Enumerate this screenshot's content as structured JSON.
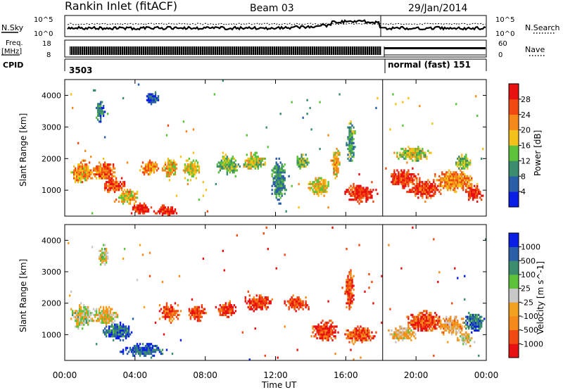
{
  "header": {
    "station": "Rankin Inlet (fitACF)",
    "beam": "Beam 03",
    "date": "29/Jan/2014"
  },
  "labels": {
    "nsky": "N.Sky",
    "nsearch": "N.Search",
    "freq_line1": "Freq.",
    "freq_line2": "[MHz]",
    "nave": "Nave",
    "cpid": "CPID",
    "cpid_1": "3503",
    "cpid_2": "normal (fast) 151",
    "noise_tick_hi": "10^5",
    "noise_tick_lo": "10^0",
    "freq_tick_hi": "18",
    "freq_tick_lo": "8",
    "nave_tick_hi": "60",
    "nave_tick_lo": "0"
  },
  "colors": {
    "power": [
      "#0a1ee6",
      "#2a5fa8",
      "#3c8c6e",
      "#5cc23a",
      "#f2c21a",
      "#f58a1a",
      "#f04a12",
      "#e81010"
    ],
    "velocity": [
      "#e81010",
      "#f04a12",
      "#f58a1a",
      "#f2a020",
      "#c8c8c8",
      "#5cc23a",
      "#3c8c6e",
      "#2a5fa8",
      "#0a1ee6"
    ]
  },
  "chart_data": [
    {
      "type": "heatmap",
      "name": "power",
      "ylabel": "Slant Range [km]",
      "xlabel": "Time UT",
      "x_ticks": [
        "00:00",
        "04:00",
        "08:00",
        "12:00",
        "16:00",
        "20:00",
        "00:00"
      ],
      "xlim_hours": [
        0,
        24
      ],
      "y_ticks": [
        1000,
        2000,
        3000,
        4000
      ],
      "ylim": [
        180,
        4500
      ],
      "colorbar_label": "Power [dB]",
      "colorbar_ticks": [
        "4",
        "8",
        "12",
        "16",
        "20",
        "24",
        "28"
      ],
      "mode_change_hour": 18.1,
      "blobs": [
        {
          "t": 1.0,
          "r": 1550,
          "dt": 0.8,
          "dr": 450,
          "lvl": 0.65
        },
        {
          "t": 2.2,
          "r": 1600,
          "dt": 0.9,
          "dr": 350,
          "lvl": 0.75
        },
        {
          "t": 2.8,
          "r": 1150,
          "dt": 0.8,
          "dr": 300,
          "lvl": 0.8
        },
        {
          "t": 3.6,
          "r": 800,
          "dt": 0.8,
          "dr": 300,
          "lvl": 0.6
        },
        {
          "t": 4.3,
          "r": 400,
          "dt": 0.7,
          "dr": 220,
          "lvl": 0.9
        },
        {
          "t": 4.8,
          "r": 1700,
          "dt": 0.6,
          "dr": 300,
          "lvl": 0.7
        },
        {
          "t": 5.8,
          "r": 350,
          "dt": 0.9,
          "dr": 200,
          "lvl": 0.9
        },
        {
          "t": 6.0,
          "r": 1700,
          "dt": 0.5,
          "dr": 400,
          "lvl": 0.6
        },
        {
          "t": 7.2,
          "r": 1650,
          "dt": 0.6,
          "dr": 400,
          "lvl": 0.55
        },
        {
          "t": 9.3,
          "r": 1800,
          "dt": 0.8,
          "dr": 350,
          "lvl": 0.45
        },
        {
          "t": 10.8,
          "r": 1900,
          "dt": 0.8,
          "dr": 350,
          "lvl": 0.5
        },
        {
          "t": 12.2,
          "r": 1300,
          "dt": 0.5,
          "dr": 800,
          "lvl": 0.3
        },
        {
          "t": 13.5,
          "r": 1900,
          "dt": 0.5,
          "dr": 300,
          "lvl": 0.45
        },
        {
          "t": 14.5,
          "r": 1100,
          "dt": 0.7,
          "dr": 400,
          "lvl": 0.55
        },
        {
          "t": 15.4,
          "r": 1900,
          "dt": 0.3,
          "dr": 600,
          "lvl": 0.6
        },
        {
          "t": 16.8,
          "r": 900,
          "dt": 1.1,
          "dr": 350,
          "lvl": 0.9
        },
        {
          "t": 16.3,
          "r": 2500,
          "dt": 0.3,
          "dr": 800,
          "lvl": 0.35
        },
        {
          "t": 19.3,
          "r": 1350,
          "dt": 1.1,
          "dr": 350,
          "lvl": 0.85
        },
        {
          "t": 20.5,
          "r": 1050,
          "dt": 1.3,
          "dr": 350,
          "lvl": 0.85
        },
        {
          "t": 22.2,
          "r": 1300,
          "dt": 1.4,
          "dr": 400,
          "lvl": 0.7
        },
        {
          "t": 23.3,
          "r": 900,
          "dt": 0.6,
          "dr": 300,
          "lvl": 0.9
        },
        {
          "t": 19.8,
          "r": 2150,
          "dt": 1.2,
          "dr": 300,
          "lvl": 0.5
        },
        {
          "t": 22.7,
          "r": 1900,
          "dt": 0.6,
          "dr": 300,
          "lvl": 0.45
        },
        {
          "t": 5.0,
          "r": 3900,
          "dt": 0.4,
          "dr": 300,
          "lvl": 0.2
        },
        {
          "t": 2.0,
          "r": 3500,
          "dt": 0.3,
          "dr": 400,
          "lvl": 0.25
        }
      ]
    },
    {
      "type": "heatmap",
      "name": "velocity",
      "ylabel": "Slant Range [km]",
      "xlabel": "Time UT",
      "x_ticks": [
        "00:00",
        "04:00",
        "08:00",
        "12:00",
        "16:00",
        "20:00",
        "00:00"
      ],
      "xlim_hours": [
        0,
        24
      ],
      "y_ticks": [
        1000,
        2000,
        3000,
        4000
      ],
      "ylim": [
        180,
        4500
      ],
      "colorbar_label": "Velocity [m s^-1]",
      "colorbar_ticks": [
        "1000",
        "500",
        "100",
        "25",
        "-25",
        "-100",
        "-500",
        "-1000"
      ],
      "mode_change_hour": 18.1,
      "blobs": [
        {
          "t": 1.0,
          "r": 1600,
          "dt": 0.8,
          "dr": 450,
          "lvl": 0.5
        },
        {
          "t": 2.3,
          "r": 1600,
          "dt": 0.9,
          "dr": 350,
          "lvl": 0.45
        },
        {
          "t": 3.0,
          "r": 1100,
          "dt": 1.0,
          "dr": 350,
          "lvl": 0.8
        },
        {
          "t": 4.5,
          "r": 500,
          "dt": 1.5,
          "dr": 250,
          "lvl": 0.85
        },
        {
          "t": 6.0,
          "r": 1700,
          "dt": 0.7,
          "dr": 350,
          "lvl": 0.2
        },
        {
          "t": 7.5,
          "r": 1700,
          "dt": 0.6,
          "dr": 350,
          "lvl": 0.15
        },
        {
          "t": 9.2,
          "r": 1800,
          "dt": 0.7,
          "dr": 300,
          "lvl": 0.1
        },
        {
          "t": 11.0,
          "r": 2000,
          "dt": 1.0,
          "dr": 300,
          "lvl": 0.12
        },
        {
          "t": 13.2,
          "r": 2000,
          "dt": 0.8,
          "dr": 300,
          "lvl": 0.12
        },
        {
          "t": 14.8,
          "r": 1100,
          "dt": 0.9,
          "dr": 400,
          "lvl": 0.15
        },
        {
          "t": 16.8,
          "r": 1000,
          "dt": 1.0,
          "dr": 350,
          "lvl": 0.2
        },
        {
          "t": 19.2,
          "r": 1000,
          "dt": 1.0,
          "dr": 300,
          "lvl": 0.4
        },
        {
          "t": 20.5,
          "r": 1400,
          "dt": 1.2,
          "dr": 400,
          "lvl": 0.15
        },
        {
          "t": 22.0,
          "r": 1300,
          "dt": 1.0,
          "dr": 350,
          "lvl": 0.35
        },
        {
          "t": 23.3,
          "r": 1400,
          "dt": 0.7,
          "dr": 400,
          "lvl": 0.8
        },
        {
          "t": 22.8,
          "r": 900,
          "dt": 0.5,
          "dr": 250,
          "lvl": 0.45
        },
        {
          "t": 16.2,
          "r": 2400,
          "dt": 0.3,
          "dr": 800,
          "lvl": 0.15
        },
        {
          "t": 2.2,
          "r": 3500,
          "dt": 0.3,
          "dr": 400,
          "lvl": 0.5
        }
      ]
    }
  ]
}
